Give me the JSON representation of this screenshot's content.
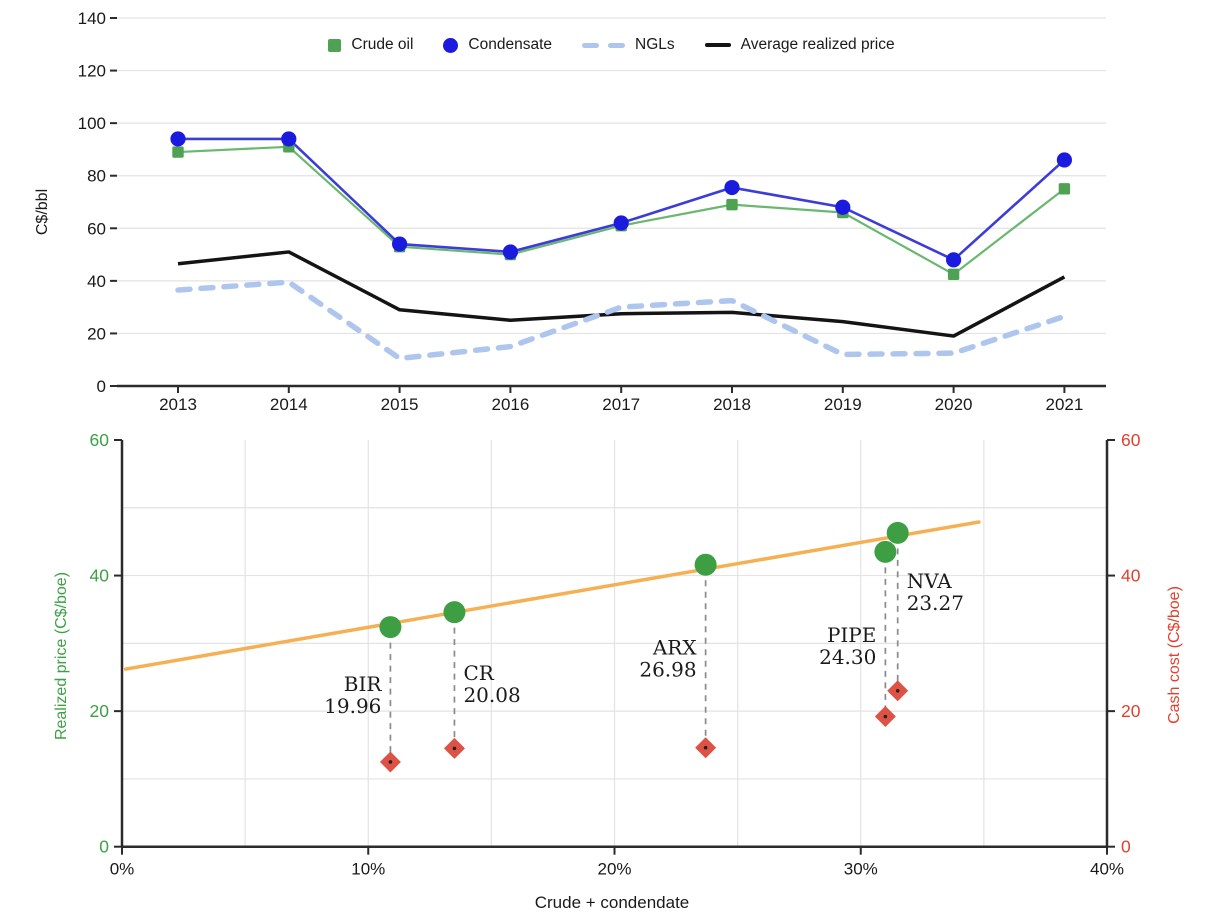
{
  "chart_data": [
    {
      "type": "line",
      "title": "",
      "ylabel": "C$/bbl",
      "ylim": [
        0,
        140
      ],
      "ytick_step": 20,
      "grid": "horizontal",
      "legend_position": "top-center",
      "categories": [
        "2013",
        "2014",
        "2015",
        "2016",
        "2017",
        "2018",
        "2019",
        "2020",
        "2021"
      ],
      "series": [
        {
          "name": "Crude oil",
          "marker": "square",
          "marker_color": "#4fa253",
          "line_color": "#6ab86f",
          "dashed": false,
          "values": [
            89,
            91,
            53,
            50,
            61,
            69,
            66,
            42.5,
            75
          ]
        },
        {
          "name": "Condensate",
          "marker": "circle",
          "marker_color": "#1b1be0",
          "line_color": "#3c3cd9",
          "dashed": false,
          "values": [
            94,
            94,
            54,
            51,
            62,
            75.5,
            68,
            48,
            86
          ]
        },
        {
          "name": "NGLs",
          "marker": "none",
          "marker_color": "#aec6ee",
          "line_color": "#aec6ee",
          "dashed": true,
          "values": [
            36.5,
            39.5,
            10.5,
            15,
            30,
            32.5,
            12,
            12.5,
            26.5
          ]
        },
        {
          "name": "Average realized price",
          "marker": "none",
          "marker_color": "#141414",
          "line_color": "#141414",
          "dashed": false,
          "values": [
            46.5,
            51,
            29,
            25,
            27.5,
            28,
            24.5,
            19,
            41.5
          ]
        }
      ]
    },
    {
      "type": "scatter",
      "xlabel": "Crude + condendate",
      "xlim_pct": [
        0,
        40
      ],
      "xtick_labels": [
        "0%",
        "10%",
        "20%",
        "30%",
        "40%"
      ],
      "ylabel_left": "Realized price (C$/boe)",
      "ylabel_right": "Cash cost (C$/boe)",
      "ylim": [
        0,
        60
      ],
      "ytick_step": 20,
      "left_axis_color": "#3da044",
      "right_axis_color": "#e0402e",
      "trend_line": {
        "color": "#f5b054",
        "x_start_pct": 0.15,
        "y_start": 26.2,
        "x_end_pct": 34.8,
        "y_end": 47.9
      },
      "point_color": "#3d9e43",
      "diamond_color": "#dd5244",
      "connector_color": "#8a8a8a",
      "points": [
        {
          "ticker": "BIR",
          "netback": "19.96",
          "x_pct": 10.9,
          "realized_price": 32.4,
          "cash_cost": 12.5,
          "label_side": "left",
          "label_y": 24.0
        },
        {
          "ticker": "CR",
          "netback": "20.08",
          "x_pct": 13.5,
          "realized_price": 34.6,
          "cash_cost": 14.5,
          "label_side": "right",
          "label_y": 25.6
        },
        {
          "ticker": "ARX",
          "netback": "26.98",
          "x_pct": 23.7,
          "realized_price": 41.6,
          "cash_cost": 14.6,
          "label_side": "left",
          "label_y": 29.4
        },
        {
          "ticker": "PIPE",
          "netback": "24.30",
          "x_pct": 31.0,
          "realized_price": 43.5,
          "cash_cost": 19.2,
          "label_side": "left",
          "label_y": 31.2
        },
        {
          "ticker": "NVA",
          "netback": "23.27",
          "x_pct": 31.5,
          "realized_price": 46.3,
          "cash_cost": 23.0,
          "label_side": "right",
          "label_y": 39.2
        }
      ]
    }
  ]
}
